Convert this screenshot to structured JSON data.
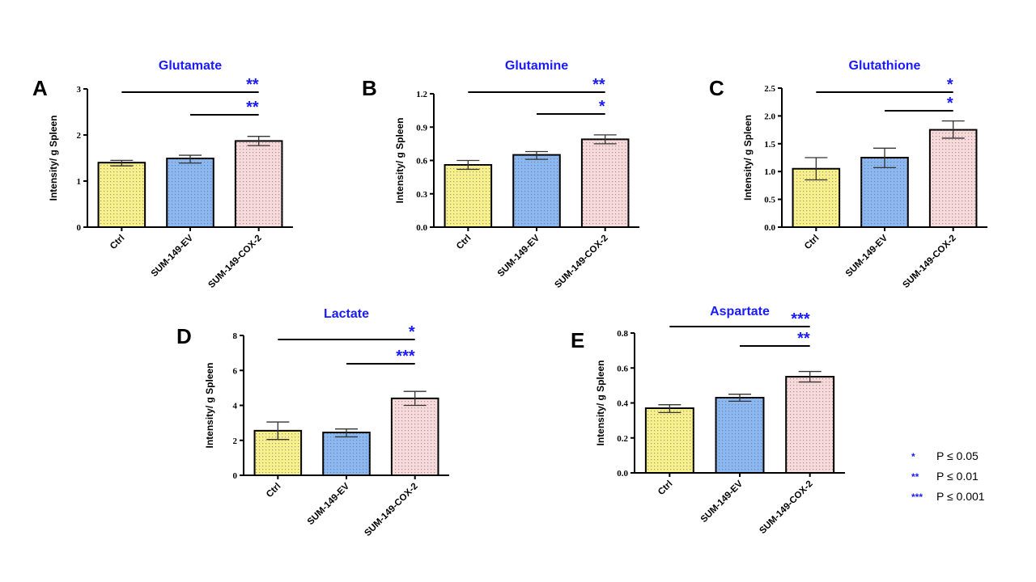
{
  "figure": {
    "categories": [
      "Ctrl",
      "SUM-149-EV",
      "SUM-149-COX-2"
    ],
    "bar_colors": [
      "#f7f08c",
      "#8cb8f2",
      "#f8dada"
    ],
    "accent_color": "#1a1aff",
    "ylabel": "Intensity/ g Spleen"
  },
  "legend": {
    "items": [
      {
        "stars": "*",
        "text": "P ≤ 0.05"
      },
      {
        "stars": "**",
        "text": "P ≤ 0.01"
      },
      {
        "stars": "***",
        "text": "P ≤ 0.001"
      }
    ]
  },
  "chart_data": [
    {
      "type": "bar",
      "panel": "A",
      "title": "Glutamate",
      "xlabel": "",
      "ylabel": "Intensity/ g Spleen",
      "categories": [
        "Ctrl",
        "SUM-149-EV",
        "SUM-149-COX-2"
      ],
      "values": [
        1.4,
        1.49,
        1.87
      ],
      "errors": [
        [
          1.33,
          1.45
        ],
        [
          1.39,
          1.56
        ],
        [
          1.77,
          1.97
        ]
      ],
      "ylim": [
        0,
        3
      ],
      "yticks": [
        "0",
        "1",
        "2",
        "3"
      ],
      "ytick_values": [
        0,
        1,
        2,
        3
      ],
      "grid": false,
      "significance": [
        {
          "from": "Ctrl",
          "to": "SUM-149-COX-2",
          "label": "**"
        },
        {
          "from": "SUM-149-EV",
          "to": "SUM-149-COX-2",
          "label": "**"
        }
      ]
    },
    {
      "type": "bar",
      "panel": "B",
      "title": "Glutamine",
      "xlabel": "",
      "ylabel": "Intensity/ g Spleen",
      "categories": [
        "Ctrl",
        "SUM-149-EV",
        "SUM-149-COX-2"
      ],
      "values": [
        0.56,
        0.65,
        0.79
      ],
      "errors": [
        [
          0.52,
          0.6
        ],
        [
          0.61,
          0.68
        ],
        [
          0.75,
          0.83
        ]
      ],
      "ylim": [
        0,
        1.2
      ],
      "yticks": [
        "0.0",
        "0.3",
        "0.6",
        "0.9",
        "1.2"
      ],
      "ytick_values": [
        0,
        0.3,
        0.6,
        0.9,
        1.2
      ],
      "grid": false,
      "significance": [
        {
          "from": "Ctrl",
          "to": "SUM-149-COX-2",
          "label": "**"
        },
        {
          "from": "SUM-149-EV",
          "to": "SUM-149-COX-2",
          "label": "*"
        }
      ]
    },
    {
      "type": "bar",
      "panel": "C",
      "title": "Glutathione",
      "xlabel": "",
      "ylabel": "Intensity/ g Spleen",
      "categories": [
        "Ctrl",
        "SUM-149-EV",
        "SUM-149-COX-2"
      ],
      "values": [
        1.05,
        1.25,
        1.75
      ],
      "errors": [
        [
          0.85,
          1.25
        ],
        [
          1.07,
          1.42
        ],
        [
          1.6,
          1.91
        ]
      ],
      "ylim": [
        0,
        2.5
      ],
      "yticks": [
        "0.0",
        "0.5",
        "1.0",
        "1.5",
        "2.0",
        "2.5"
      ],
      "ytick_values": [
        0,
        0.5,
        1.0,
        1.5,
        2.0,
        2.5
      ],
      "grid": false,
      "significance": [
        {
          "from": "Ctrl",
          "to": "SUM-149-COX-2",
          "label": "*"
        },
        {
          "from": "SUM-149-EV",
          "to": "SUM-149-COX-2",
          "label": "*"
        }
      ]
    },
    {
      "type": "bar",
      "panel": "D",
      "title": "Lactate",
      "xlabel": "",
      "ylabel": "Intensity/ g Spleen",
      "categories": [
        "Ctrl",
        "SUM-149-EV",
        "SUM-149-COX-2"
      ],
      "values": [
        2.55,
        2.45,
        4.4
      ],
      "errors": [
        [
          2.05,
          3.05
        ],
        [
          2.2,
          2.65
        ],
        [
          4.0,
          4.8
        ]
      ],
      "ylim": [
        0,
        8
      ],
      "yticks": [
        "0",
        "2",
        "4",
        "6",
        "8"
      ],
      "ytick_values": [
        0,
        2,
        4,
        6,
        8
      ],
      "grid": false,
      "significance": [
        {
          "from": "Ctrl",
          "to": "SUM-149-COX-2",
          "label": "*"
        },
        {
          "from": "SUM-149-EV",
          "to": "SUM-149-COX-2",
          "label": "***"
        }
      ]
    },
    {
      "type": "bar",
      "panel": "E",
      "title": "Aspartate",
      "xlabel": "",
      "ylabel": "Intensity/ g Spleen",
      "categories": [
        "Ctrl",
        "SUM-149-EV",
        "SUM-149-COX-2"
      ],
      "values": [
        0.37,
        0.43,
        0.55
      ],
      "errors": [
        [
          0.345,
          0.39
        ],
        [
          0.41,
          0.45
        ],
        [
          0.52,
          0.58
        ]
      ],
      "ylim": [
        0,
        0.8
      ],
      "yticks": [
        "0.0",
        "0.2",
        "0.4",
        "0.6",
        "0.8"
      ],
      "ytick_values": [
        0,
        0.2,
        0.4,
        0.6,
        0.8
      ],
      "grid": false,
      "significance": [
        {
          "from": "Ctrl",
          "to": "SUM-149-COX-2",
          "label": "***"
        },
        {
          "from": "SUM-149-EV",
          "to": "SUM-149-COX-2",
          "label": "**"
        }
      ]
    }
  ]
}
